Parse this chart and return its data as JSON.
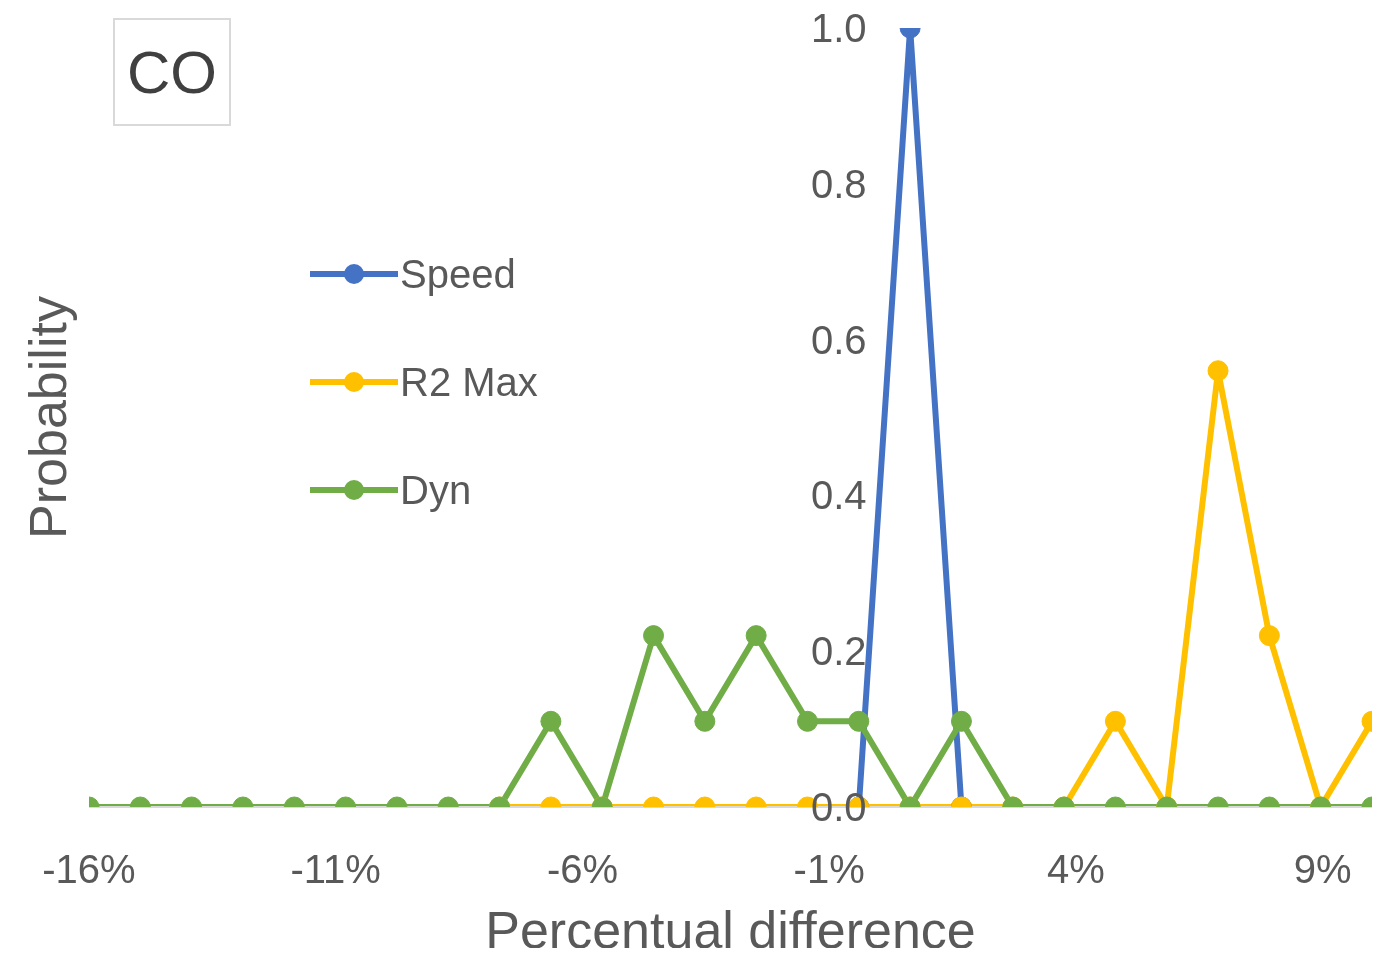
{
  "chart_data": {
    "type": "line",
    "title": "CO",
    "xlabel": "Percentual difference",
    "ylabel": "Probability",
    "x": [
      -16,
      -14.96,
      -13.92,
      -12.88,
      -11.84,
      -10.8,
      -9.76,
      -8.72,
      -7.68,
      -6.64,
      -5.6,
      -4.56,
      -3.52,
      -2.48,
      -1.44,
      -0.4,
      0.64,
      1.68,
      2.72,
      3.76,
      4.8,
      5.84,
      6.88,
      7.92,
      8.96,
      10
    ],
    "series": [
      {
        "name": "Speed",
        "color": "#4472c4",
        "values": [
          null,
          null,
          null,
          null,
          null,
          null,
          null,
          null,
          null,
          null,
          null,
          null,
          null,
          null,
          null,
          0,
          1,
          0,
          null,
          null,
          null,
          null,
          null,
          null,
          null,
          null
        ]
      },
      {
        "name": "R2 Max",
        "color": "#ffc000",
        "values": [
          null,
          null,
          null,
          null,
          null,
          null,
          null,
          null,
          0,
          0,
          0,
          0,
          0,
          0,
          0,
          0,
          0,
          0,
          0,
          0,
          0.11,
          0,
          0.56,
          0.22,
          0,
          0.11
        ]
      },
      {
        "name": "Dyn",
        "color": "#70ad47",
        "values": [
          0,
          0,
          0,
          0,
          0,
          0,
          0,
          0,
          0,
          0.11,
          0,
          0.22,
          0.11,
          0.22,
          0.11,
          0.11,
          0,
          0.11,
          0,
          0,
          0,
          0,
          0,
          0,
          0,
          0
        ]
      }
    ],
    "xlim": [
      -16,
      10
    ],
    "xticks": [
      {
        "value": -16,
        "label": "-16%"
      },
      {
        "value": -11,
        "label": "-11%"
      },
      {
        "value": -6,
        "label": "-6%"
      },
      {
        "value": -1,
        "label": "-1%"
      },
      {
        "value": 4,
        "label": "4%"
      },
      {
        "value": 9,
        "label": "9%"
      }
    ],
    "ylim": [
      0,
      1
    ],
    "yticks": [
      {
        "value": 0,
        "label": "0.0"
      },
      {
        "value": 0.2,
        "label": "0.2"
      },
      {
        "value": 0.4,
        "label": "0.4"
      },
      {
        "value": 0.6,
        "label": "0.6"
      },
      {
        "value": 0.8,
        "label": "0.8"
      },
      {
        "value": 1,
        "label": "1.0"
      }
    ],
    "grid": false,
    "legend": "left",
    "marker": "circle",
    "line_style": "solid"
  }
}
